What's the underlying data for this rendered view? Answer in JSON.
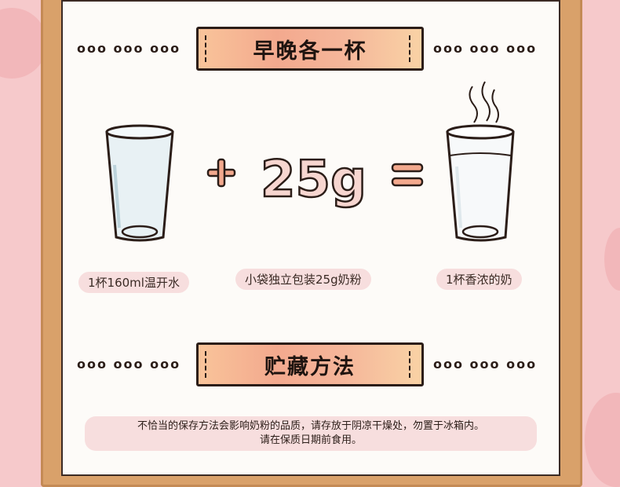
{
  "section1": {
    "title": "早晚各一杯",
    "dots_left": "ooo ooo ooo",
    "dots_right": "ooo ooo ooo"
  },
  "formula": {
    "plus": "+",
    "amount": "25g",
    "equals": "="
  },
  "labels": {
    "water": "1杯160ml温开水",
    "packet": "小袋独立包装25g奶粉",
    "milk": "1杯香浓的奶"
  },
  "section2": {
    "title": "贮藏方法",
    "dots_left": "ooo ooo ooo",
    "dots_right": "ooo ooo ooo",
    "note_line1": "不恰当的保存方法会影响奶粉的品质，请存放于阴凉干燥处，勿置于冰箱内。",
    "note_line2": "请在保质日期前食用。"
  },
  "colors": {
    "background": "#f6c9cb",
    "frame": "#d9a16a",
    "banner": "#f3a98e"
  }
}
